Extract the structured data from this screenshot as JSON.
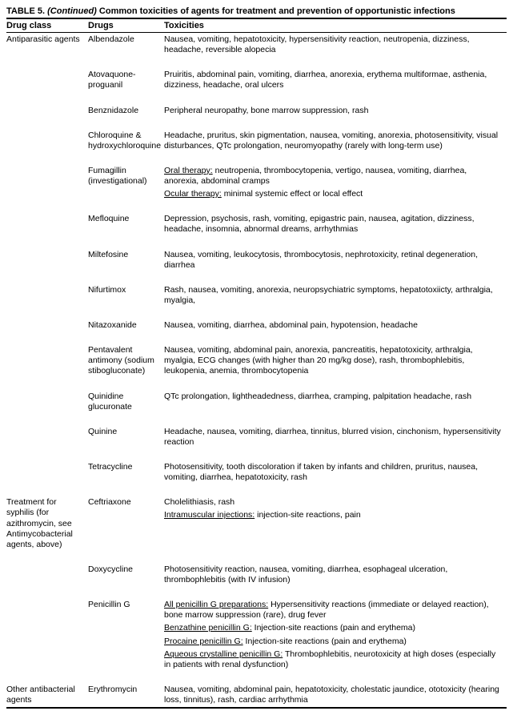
{
  "title_prefix": "TABLE 5.",
  "title_cont": "(Continued)",
  "title_rest": " Common toxicities of agents for treatment and prevention of opportunistic infections",
  "columns": {
    "c1": "Drug class",
    "c2": "Drugs",
    "c3": "Toxicities"
  },
  "sections": [
    {
      "class_label": "Antiparasitic agents",
      "rows": [
        {
          "drug": "Albendazole",
          "tox": [
            {
              "t": "Nausea, vomiting, hepatotoxicity, hypersensitivity reaction, neutropenia, dizziness, headache, reversible alopecia"
            }
          ]
        },
        {
          "drug": "Atovaquone-proguanil",
          "tox": [
            {
              "t": "Pruiritis, abdominal pain, vomiting, diarrhea, anorexia, erythema multiformae, asthenia, dizziness, headache, oral ulcers"
            }
          ]
        },
        {
          "drug": "Benznidazole",
          "tox": [
            {
              "t": "Peripheral neuropathy, bone marrow suppression, rash"
            }
          ]
        },
        {
          "drug": "Chloroquine & hydroxychloroquine",
          "tox": [
            {
              "t": "Headache, pruritus, skin pigmentation, nausea, vomiting, anorexia, photosensitivity, visual disturbances, QTc prolongation, neuromyopathy (rarely with long-term use)"
            }
          ]
        },
        {
          "drug": "Fumagillin (investigational)",
          "tox": [
            {
              "u": "Oral therapy:",
              "t": " neutropenia, thrombocytopenia, vertigo, nausea, vomiting, diarrhea, anorexia, abdominal cramps"
            },
            {
              "u": "Ocular therapy:",
              "t": " minimal systemic effect or local effect"
            }
          ]
        },
        {
          "drug": "Mefloquine",
          "tox": [
            {
              "t": "Depression, psychosis, rash, vomiting, epigastric pain, nausea, agitation, dizziness, headache, insomnia, abnormal dreams, arrhythmias"
            }
          ]
        },
        {
          "drug": "Miltefosine",
          "tox": [
            {
              "t": "Nausea, vomiting, leukocytosis, thrombocytosis, nephrotoxicity, retinal degeneration, diarrhea"
            }
          ]
        },
        {
          "drug": "Nifurtimox",
          "tox": [
            {
              "t": "Rash, nausea, vomiting, anorexia, neuropsychiatric symptoms, hepatotoxiicty, arthralgia, myalgia,"
            }
          ]
        },
        {
          "drug": "Nitazoxanide",
          "tox": [
            {
              "t": "Nausea, vomiting, diarrhea, abdominal pain, hypotension, headache"
            }
          ]
        },
        {
          "drug": "Pentavalent antimony (sodium stibogluconate)",
          "tox": [
            {
              "t": "Nausea, vomiting, abdominal pain, anorexia, pancreatitis, hepatotoxicity, arthralgia, myalgia, ECG changes (with higher than 20 mg/kg dose), rash, thrombophlebitis, leukopenia, anemia, thrombocytopenia"
            }
          ]
        },
        {
          "drug": "Quinidine glucuronate",
          "tox": [
            {
              "t": "QTc prolongation, lightheadedness, diarrhea, cramping, palpitation headache, rash"
            }
          ]
        },
        {
          "drug": "Quinine",
          "tox": [
            {
              "t": "Headache, nausea, vomiting, diarrhea, tinnitus, blurred vision, cinchonism, hypersensitivity reaction"
            }
          ]
        },
        {
          "drug": "Tetracycline",
          "tox": [
            {
              "t": "Photosensitivity, tooth discoloration if taken by infants and children, pruritus, nausea, vomiting, diarrhea, hepatotoxicity, rash"
            }
          ]
        }
      ]
    },
    {
      "class_label": "Treatment for syphilis (for azithromycin, see Antimycobacterial agents, above)",
      "rows": [
        {
          "drug": "Ceftriaxone",
          "tox": [
            {
              "t": "Cholelithiasis, rash"
            },
            {
              "u": "Intramuscular injections:",
              "t": " injection-site reactions, pain"
            }
          ]
        },
        {
          "drug": "Doxycycline",
          "tox": [
            {
              "t": "Photosensitivity reaction, nausea, vomiting, diarrhea, esophageal ulceration, thrombophlebitis (with IV infusion)"
            }
          ]
        },
        {
          "drug": "Penicillin G",
          "tox": [
            {
              "u": "All penicillin G preparations:",
              "t": " Hypersensitivity reactions (immediate or delayed reaction), bone marrow suppression (rare), drug fever"
            },
            {
              "u": "Benzathine penicillin G:",
              "t": " Injection-site reactions (pain and erythema)"
            },
            {
              "u": "Procaine penicillin G:",
              "t": " Injection-site reactions (pain and erythema)"
            },
            {
              "u": "Aqueous crystalline penicillin G:",
              "t": " Thrombophlebitis, neurotoxicity at high doses (especially in patients with renal dysfunction)"
            }
          ]
        }
      ]
    },
    {
      "class_label": "Other antibacterial agents",
      "rows": [
        {
          "drug": "Erythromycin",
          "tox": [
            {
              "t": "Nausea, vomiting, abdominal pain, hepatotoxicity, cholestatic jaundice, ototoxicity (hearing loss, tinnitus), rash, cardiac arrhythmia"
            }
          ]
        }
      ]
    }
  ]
}
